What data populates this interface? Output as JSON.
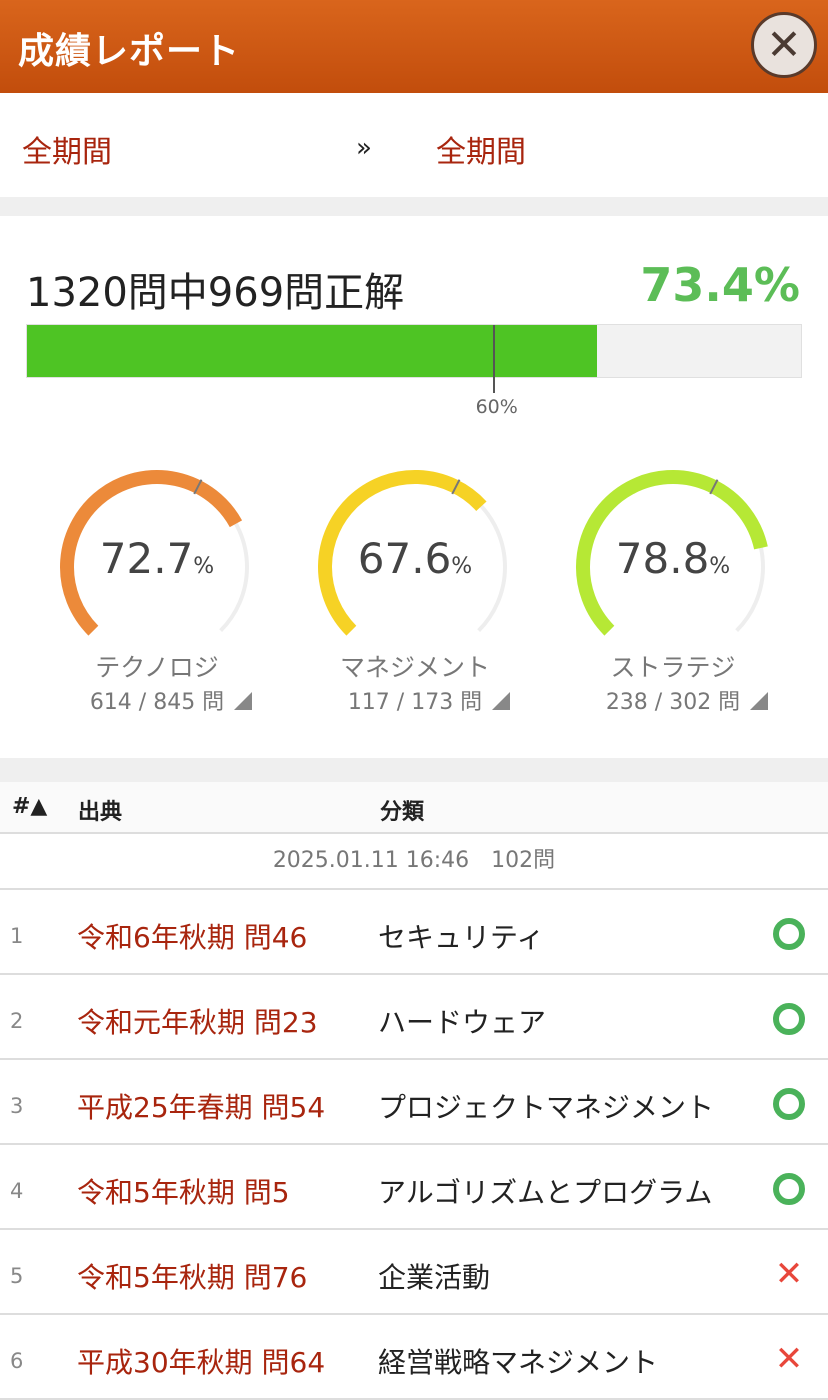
{
  "header": {
    "title": "成績レポート",
    "close_icon": "close-icon"
  },
  "period": {
    "from": "全期間",
    "separator": "»",
    "to": "全期間"
  },
  "summary": {
    "count_text": "1320問中969問正解",
    "rate_text": "73.4%",
    "progress": 0.734,
    "threshold": 0.6,
    "threshold_label": "60%"
  },
  "gauges": [
    {
      "value": "72.7",
      "unit": "%",
      "ratio": 0.727,
      "name": "テクノロジ",
      "fraction": "614 / 845 問",
      "color": "#ec8a3a"
    },
    {
      "value": "67.6",
      "unit": "%",
      "ratio": 0.676,
      "name": "マネジメント",
      "fraction": "117 / 173 問",
      "color": "#f6d225"
    },
    {
      "value": "78.8",
      "unit": "%",
      "ratio": 0.788,
      "name": "ストラテジ",
      "fraction": "238 / 302 問",
      "color": "#b6e835"
    }
  ],
  "table": {
    "headers": {
      "num": "#▲",
      "source": "出典",
      "category": "分類"
    },
    "session": "2025.01.11 16:46　102問",
    "rows": [
      {
        "num": "1",
        "source": "令和6年秋期 問46",
        "category": "セキュリティ",
        "result": "correct"
      },
      {
        "num": "2",
        "source": "令和元年秋期 問23",
        "category": "ハードウェア",
        "result": "correct"
      },
      {
        "num": "3",
        "source": "平成25年春期 問54",
        "category": "プロジェクトマネジメント",
        "result": "correct"
      },
      {
        "num": "4",
        "source": "令和5年秋期 問5",
        "category": "アルゴリズムとプログラム",
        "result": "correct"
      },
      {
        "num": "5",
        "source": "令和5年秋期 問76",
        "category": "企業活動",
        "result": "incorrect"
      },
      {
        "num": "6",
        "source": "平成30年秋期 問64",
        "category": "経営戦略マネジメント",
        "result": "incorrect"
      }
    ]
  },
  "icons": {
    "correct": "circle-icon",
    "incorrect": "cross-icon",
    "expand": "triangle-icon"
  }
}
